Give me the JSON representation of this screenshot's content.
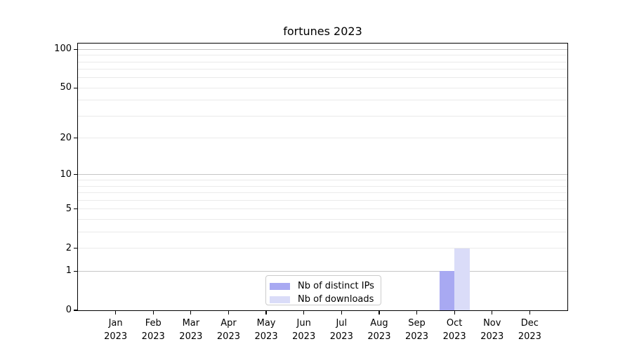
{
  "chart_data": {
    "type": "bar",
    "title": "fortunes 2023",
    "categories": [
      {
        "month": "Jan",
        "year": "2023"
      },
      {
        "month": "Feb",
        "year": "2023"
      },
      {
        "month": "Mar",
        "year": "2023"
      },
      {
        "month": "Apr",
        "year": "2023"
      },
      {
        "month": "May",
        "year": "2023"
      },
      {
        "month": "Jun",
        "year": "2023"
      },
      {
        "month": "Jul",
        "year": "2023"
      },
      {
        "month": "Aug",
        "year": "2023"
      },
      {
        "month": "Sep",
        "year": "2023"
      },
      {
        "month": "Oct",
        "year": "2023"
      },
      {
        "month": "Nov",
        "year": "2023"
      },
      {
        "month": "Dec",
        "year": "2023"
      }
    ],
    "series": [
      {
        "name": "Nb of distinct IPs",
        "color": "#a8a9f2",
        "values": [
          0,
          0,
          0,
          0,
          0,
          0,
          0,
          0,
          0,
          1,
          0,
          0
        ]
      },
      {
        "name": "Nb of downloads",
        "color": "#dadcf8",
        "values": [
          0,
          0,
          0,
          0,
          0,
          0,
          0,
          0,
          0,
          2,
          0,
          0
        ]
      }
    ],
    "yscale": "log1p",
    "ylim": [
      0,
      111
    ],
    "yticks": [
      0,
      1,
      2,
      5,
      10,
      20,
      50,
      100
    ],
    "major_gridlines": [
      1,
      10,
      100
    ],
    "minor_gridlines": [
      2,
      3,
      4,
      5,
      6,
      7,
      8,
      9,
      20,
      30,
      40,
      50,
      60,
      70,
      80,
      90
    ],
    "grid": "horizontal",
    "legend_position": "lower center",
    "bar_width_fraction": 0.4
  },
  "colors": {
    "minor_grid": "#eaeaea",
    "major_grid": "#c6c6c6",
    "axis": "#000000",
    "text": "#000000",
    "background": "#ffffff",
    "legend_border": "#cccccc"
  }
}
